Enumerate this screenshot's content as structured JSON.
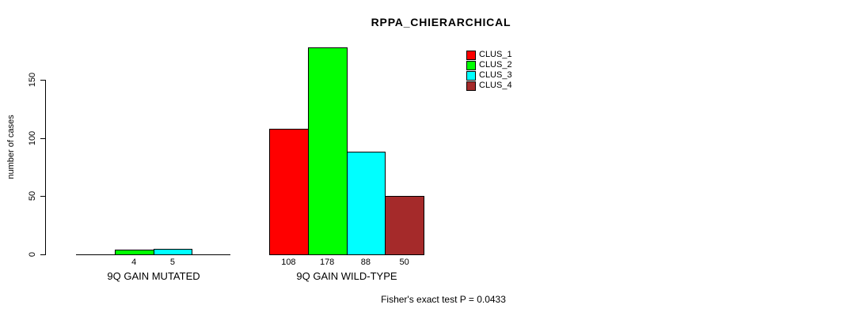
{
  "chart_data": {
    "type": "bar",
    "title": "RPPA_CHIERARCHICAL",
    "xlabel": "",
    "ylabel": "number of cases",
    "yticks": [
      0,
      50,
      100,
      150
    ],
    "ylim": [
      0,
      185
    ],
    "grid": false,
    "legend_position": "top-right",
    "legend": [
      {
        "label": "CLUS_1",
        "color": "#FF0000"
      },
      {
        "label": "CLUS_2",
        "color": "#00FF00"
      },
      {
        "label": "CLUS_3",
        "color": "#00FFFF"
      },
      {
        "label": "CLUS_4",
        "color": "#A52A2A"
      }
    ],
    "categories": [
      "CLUS_1",
      "CLUS_2",
      "CLUS_3",
      "CLUS_4"
    ],
    "groups": [
      {
        "label": "9Q GAIN MUTATED",
        "values": [
          0,
          4,
          5,
          0
        ],
        "bar_labels": [
          "",
          "4",
          "5",
          ""
        ]
      },
      {
        "label": "9Q GAIN WILD-TYPE",
        "values": [
          108,
          178,
          88,
          50
        ],
        "bar_labels": [
          "108",
          "178",
          "88",
          "50"
        ]
      }
    ],
    "footnote": "Fisher's exact test P = 0.0433"
  }
}
